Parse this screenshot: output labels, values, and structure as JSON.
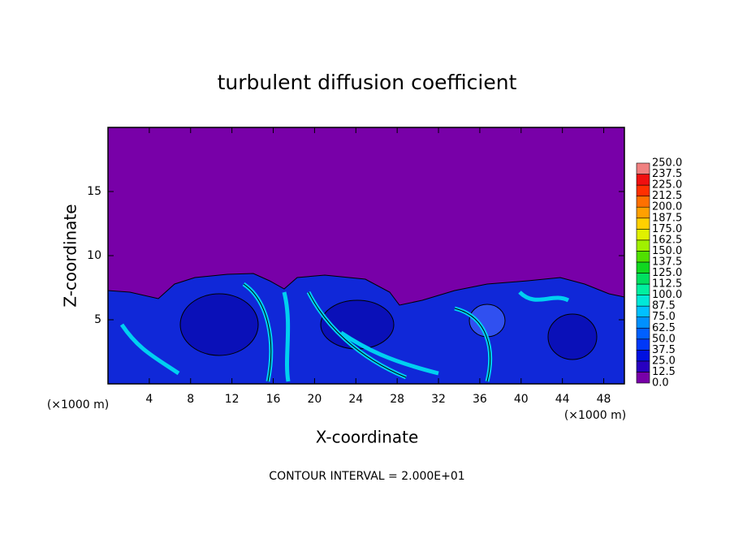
{
  "chart_data": {
    "type": "contour",
    "title": "turbulent diffusion coefficient",
    "x_label": "X-coordinate",
    "y_label": "Z-coordinate",
    "x_unit_label": "(×1000 m)",
    "y_unit_label": "(×1000 m)",
    "annotation": "CONTOUR INTERVAL = 2.000E+01",
    "xlim": [
      0,
      50
    ],
    "ylim": [
      0,
      20
    ],
    "xticks": [
      4,
      8,
      12,
      16,
      20,
      24,
      28,
      32,
      36,
      40,
      44,
      48
    ],
    "yticks": [
      5,
      10,
      15
    ],
    "colorbar": {
      "levels": [
        {
          "value": 0,
          "label": "0.0"
        },
        12.5,
        {
          "value": 25,
          "label": "25.0"
        },
        37.5,
        {
          "value": 50,
          "label": "50.0"
        },
        62.5,
        {
          "value": 75,
          "label": "75.0"
        },
        87.5,
        {
          "value": 100,
          "label": "100.0"
        },
        112.5,
        {
          "value": 125,
          "label": "125.0"
        },
        137.5,
        {
          "value": 150,
          "label": "150.0"
        },
        162.5,
        {
          "value": 175,
          "label": "175.0"
        },
        187.5,
        {
          "value": 200,
          "label": "200.0"
        },
        212.5,
        {
          "value": 225,
          "label": "225.0"
        },
        237.5,
        {
          "value": 250,
          "label": "250.0"
        }
      ],
      "colors": [
        "#7800a8",
        "#2800c0",
        "#0010e0",
        "#0038f8",
        "#0060ff",
        "#0090ff",
        "#00c0ff",
        "#00e8d8",
        "#00f0a0",
        "#00e060",
        "#10d820",
        "#50e000",
        "#a0f000",
        "#e0f000",
        "#ffd000",
        "#ffa000",
        "#ff7000",
        "#ff3000",
        "#f01010",
        "#f08080"
      ]
    }
  }
}
